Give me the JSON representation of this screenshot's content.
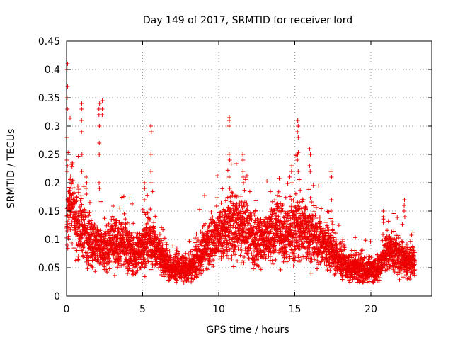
{
  "chart_data": {
    "type": "scatter",
    "title": "Day 149 of 2017, SRMTID for receiver lord",
    "xlabel": "GPS time / hours",
    "ylabel": "SRMTID / TECUs",
    "xlim": [
      0,
      24
    ],
    "ylim": [
      0,
      0.45
    ],
    "xticks": [
      0,
      5,
      10,
      15,
      20
    ],
    "xtick_labels": [
      "0",
      "5",
      "10",
      "15",
      "20"
    ],
    "yticks": [
      0,
      0.05,
      0.1,
      0.15,
      0.2,
      0.25,
      0.3,
      0.35,
      0.4,
      0.45
    ],
    "ytick_labels": [
      "0",
      "0.05",
      "0.1",
      "0.15",
      "0.2",
      "0.25",
      "0.3",
      "0.35",
      "0.4",
      "0.45"
    ],
    "grid": true,
    "marker": "plus",
    "color": "#ee0000",
    "series": [
      {
        "name": "SRMTID",
        "profile_hours": [
          0,
          0.1,
          0.3,
          0.6,
          1.0,
          1.5,
          2.0,
          2.5,
          3.0,
          3.5,
          4.0,
          4.5,
          5.0,
          5.5,
          6.0,
          6.5,
          7.0,
          7.5,
          8.0,
          8.5,
          9.0,
          9.5,
          10.0,
          10.5,
          11.0,
          11.5,
          12.0,
          12.5,
          13.0,
          13.5,
          14.0,
          14.5,
          15.0,
          15.5,
          16.0,
          16.5,
          17.0,
          17.5,
          18.0,
          18.5,
          19.0,
          19.5,
          20.0,
          20.5,
          21.0,
          21.5,
          22.0,
          22.5,
          22.9
        ],
        "profile_median": [
          0.12,
          0.15,
          0.17,
          0.13,
          0.12,
          0.1,
          0.09,
          0.08,
          0.09,
          0.1,
          0.09,
          0.07,
          0.09,
          0.1,
          0.08,
          0.06,
          0.045,
          0.05,
          0.045,
          0.06,
          0.08,
          0.1,
          0.11,
          0.12,
          0.13,
          0.12,
          0.11,
          0.1,
          0.1,
          0.11,
          0.12,
          0.11,
          0.12,
          0.12,
          0.11,
          0.1,
          0.09,
          0.08,
          0.06,
          0.05,
          0.05,
          0.045,
          0.045,
          0.05,
          0.08,
          0.08,
          0.07,
          0.06,
          0.06
        ],
        "spikes": [
          {
            "x": 0.05,
            "values": [
              0.41,
              0.4,
              0.37,
              0.35,
              0.33,
              0.28,
              0.24,
              0.23,
              0.22
            ]
          },
          {
            "x": 0.3,
            "values": [
              0.2,
              0.19,
              0.18
            ]
          },
          {
            "x": 1.0,
            "values": [
              0.34,
              0.33,
              0.31,
              0.29,
              0.25,
              0.22
            ]
          },
          {
            "x": 1.3,
            "values": [
              0.21,
              0.2,
              0.19,
              0.18
            ]
          },
          {
            "x": 2.15,
            "values": [
              0.34,
              0.33,
              0.32,
              0.3,
              0.27,
              0.25,
              0.2,
              0.19
            ]
          },
          {
            "x": 2.35,
            "values": [
              0.345,
              0.33,
              0.32
            ]
          },
          {
            "x": 5.55,
            "values": [
              0.3,
              0.29,
              0.25,
              0.22,
              0.2
            ]
          },
          {
            "x": 5.1,
            "values": [
              0.2,
              0.19,
              0.17
            ]
          },
          {
            "x": 10.7,
            "values": [
              0.315,
              0.31,
              0.3,
              0.25,
              0.24,
              0.21,
              0.19
            ]
          },
          {
            "x": 11.6,
            "values": [
              0.25,
              0.24,
              0.22,
              0.21,
              0.2
            ]
          },
          {
            "x": 15.2,
            "values": [
              0.31,
              0.3,
              0.29,
              0.28,
              0.25,
              0.24,
              0.22
            ]
          },
          {
            "x": 14.8,
            "values": [
              0.23,
              0.22,
              0.2
            ]
          },
          {
            "x": 16.0,
            "values": [
              0.26,
              0.25,
              0.23,
              0.22
            ]
          },
          {
            "x": 17.4,
            "values": [
              0.22,
              0.21,
              0.17,
              0.15
            ]
          },
          {
            "x": 20.8,
            "values": [
              0.15,
              0.14,
              0.13
            ]
          },
          {
            "x": 22.2,
            "values": [
              0.17,
              0.16,
              0.15,
              0.14
            ]
          }
        ]
      }
    ]
  }
}
